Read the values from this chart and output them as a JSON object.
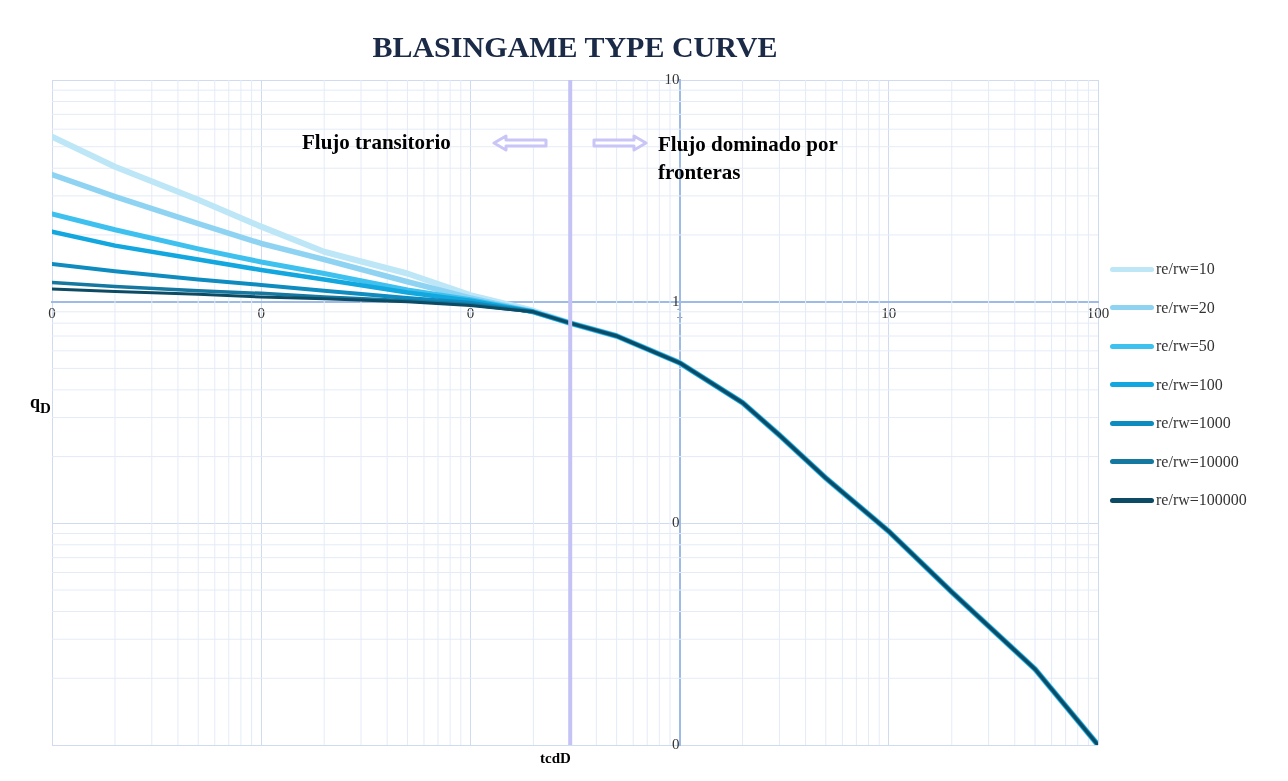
{
  "chart_data": {
    "type": "line",
    "title": "BLASINGAME TYPE CURVE",
    "xlabel": "tcdD",
    "ylabel": "q$_{D}$",
    "annotations": [
      "Flujo transitorio",
      "Flujo dominado por fronteras"
    ],
    "x": [
      0.001,
      0.002,
      0.005,
      0.01,
      0.02,
      0.05,
      0.1,
      0.2,
      0.3,
      0.5,
      1,
      2,
      3,
      5,
      10,
      20,
      50,
      100
    ],
    "series": [
      {
        "name": "re/rw=10",
        "color": "#bde6f7",
        "values": [
          5.55,
          4.06,
          2.88,
          2.18,
          1.68,
          1.34,
          1.07,
          0.91,
          0.8,
          0.7,
          0.53,
          0.35,
          0.25,
          0.16,
          0.092,
          0.049,
          0.022,
          0.01
        ]
      },
      {
        "name": "re/rw=20",
        "color": "#8fd3f3",
        "values": [
          3.74,
          2.98,
          2.25,
          1.83,
          1.55,
          1.23,
          1.04,
          0.9,
          0.8,
          0.7,
          0.53,
          0.35,
          0.25,
          0.16,
          0.092,
          0.049,
          0.022,
          0.01
        ]
      },
      {
        "name": "re/rw=50",
        "color": "#3ec1ee",
        "values": [
          2.49,
          2.11,
          1.73,
          1.51,
          1.34,
          1.13,
          1.02,
          0.9,
          0.8,
          0.7,
          0.53,
          0.35,
          0.25,
          0.16,
          0.092,
          0.049,
          0.022,
          0.01
        ]
      },
      {
        "name": "re/rw=100",
        "color": "#12a7de",
        "values": [
          2.07,
          1.79,
          1.55,
          1.39,
          1.26,
          1.1,
          1.01,
          0.9,
          0.8,
          0.7,
          0.53,
          0.35,
          0.25,
          0.16,
          0.092,
          0.049,
          0.022,
          0.01
        ]
      },
      {
        "name": "re/rw=1000",
        "color": "#0f8cbf",
        "values": [
          1.48,
          1.37,
          1.26,
          1.19,
          1.12,
          1.04,
          0.99,
          0.9,
          0.8,
          0.7,
          0.53,
          0.35,
          0.25,
          0.16,
          0.092,
          0.049,
          0.022,
          0.01
        ]
      },
      {
        "name": "re/rw=10000",
        "color": "#1478a0",
        "values": [
          1.22,
          1.17,
          1.12,
          1.09,
          1.05,
          1.01,
          0.97,
          0.9,
          0.8,
          0.7,
          0.53,
          0.35,
          0.25,
          0.16,
          0.092,
          0.049,
          0.022,
          0.01
        ]
      },
      {
        "name": "re/rw=100000",
        "color": "#0d4a63",
        "values": [
          1.14,
          1.11,
          1.08,
          1.05,
          1.03,
          1.0,
          0.96,
          0.9,
          0.8,
          0.7,
          0.53,
          0.35,
          0.25,
          0.16,
          0.092,
          0.049,
          0.022,
          0.01
        ]
      }
    ],
    "log": "xy",
    "xlim": [
      0.001,
      100
    ],
    "ylim": [
      0.01,
      10
    ],
    "xticks": [
      {
        "value": 0.001,
        "label": "0"
      },
      {
        "value": 0.01,
        "label": "0"
      },
      {
        "value": 0.1,
        "label": "0"
      },
      1,
      10,
      100
    ],
    "yticks": [
      {
        "value": 0.01,
        "label": "0"
      },
      {
        "value": 0.1,
        "label": "0"
      },
      1,
      10
    ],
    "ref_lines": [
      {
        "axis": "x",
        "value": 0.3,
        "color": "#c5c3f5"
      }
    ],
    "grid": true,
    "legend": "right",
    "line_style": "solid",
    "marker": "none"
  }
}
